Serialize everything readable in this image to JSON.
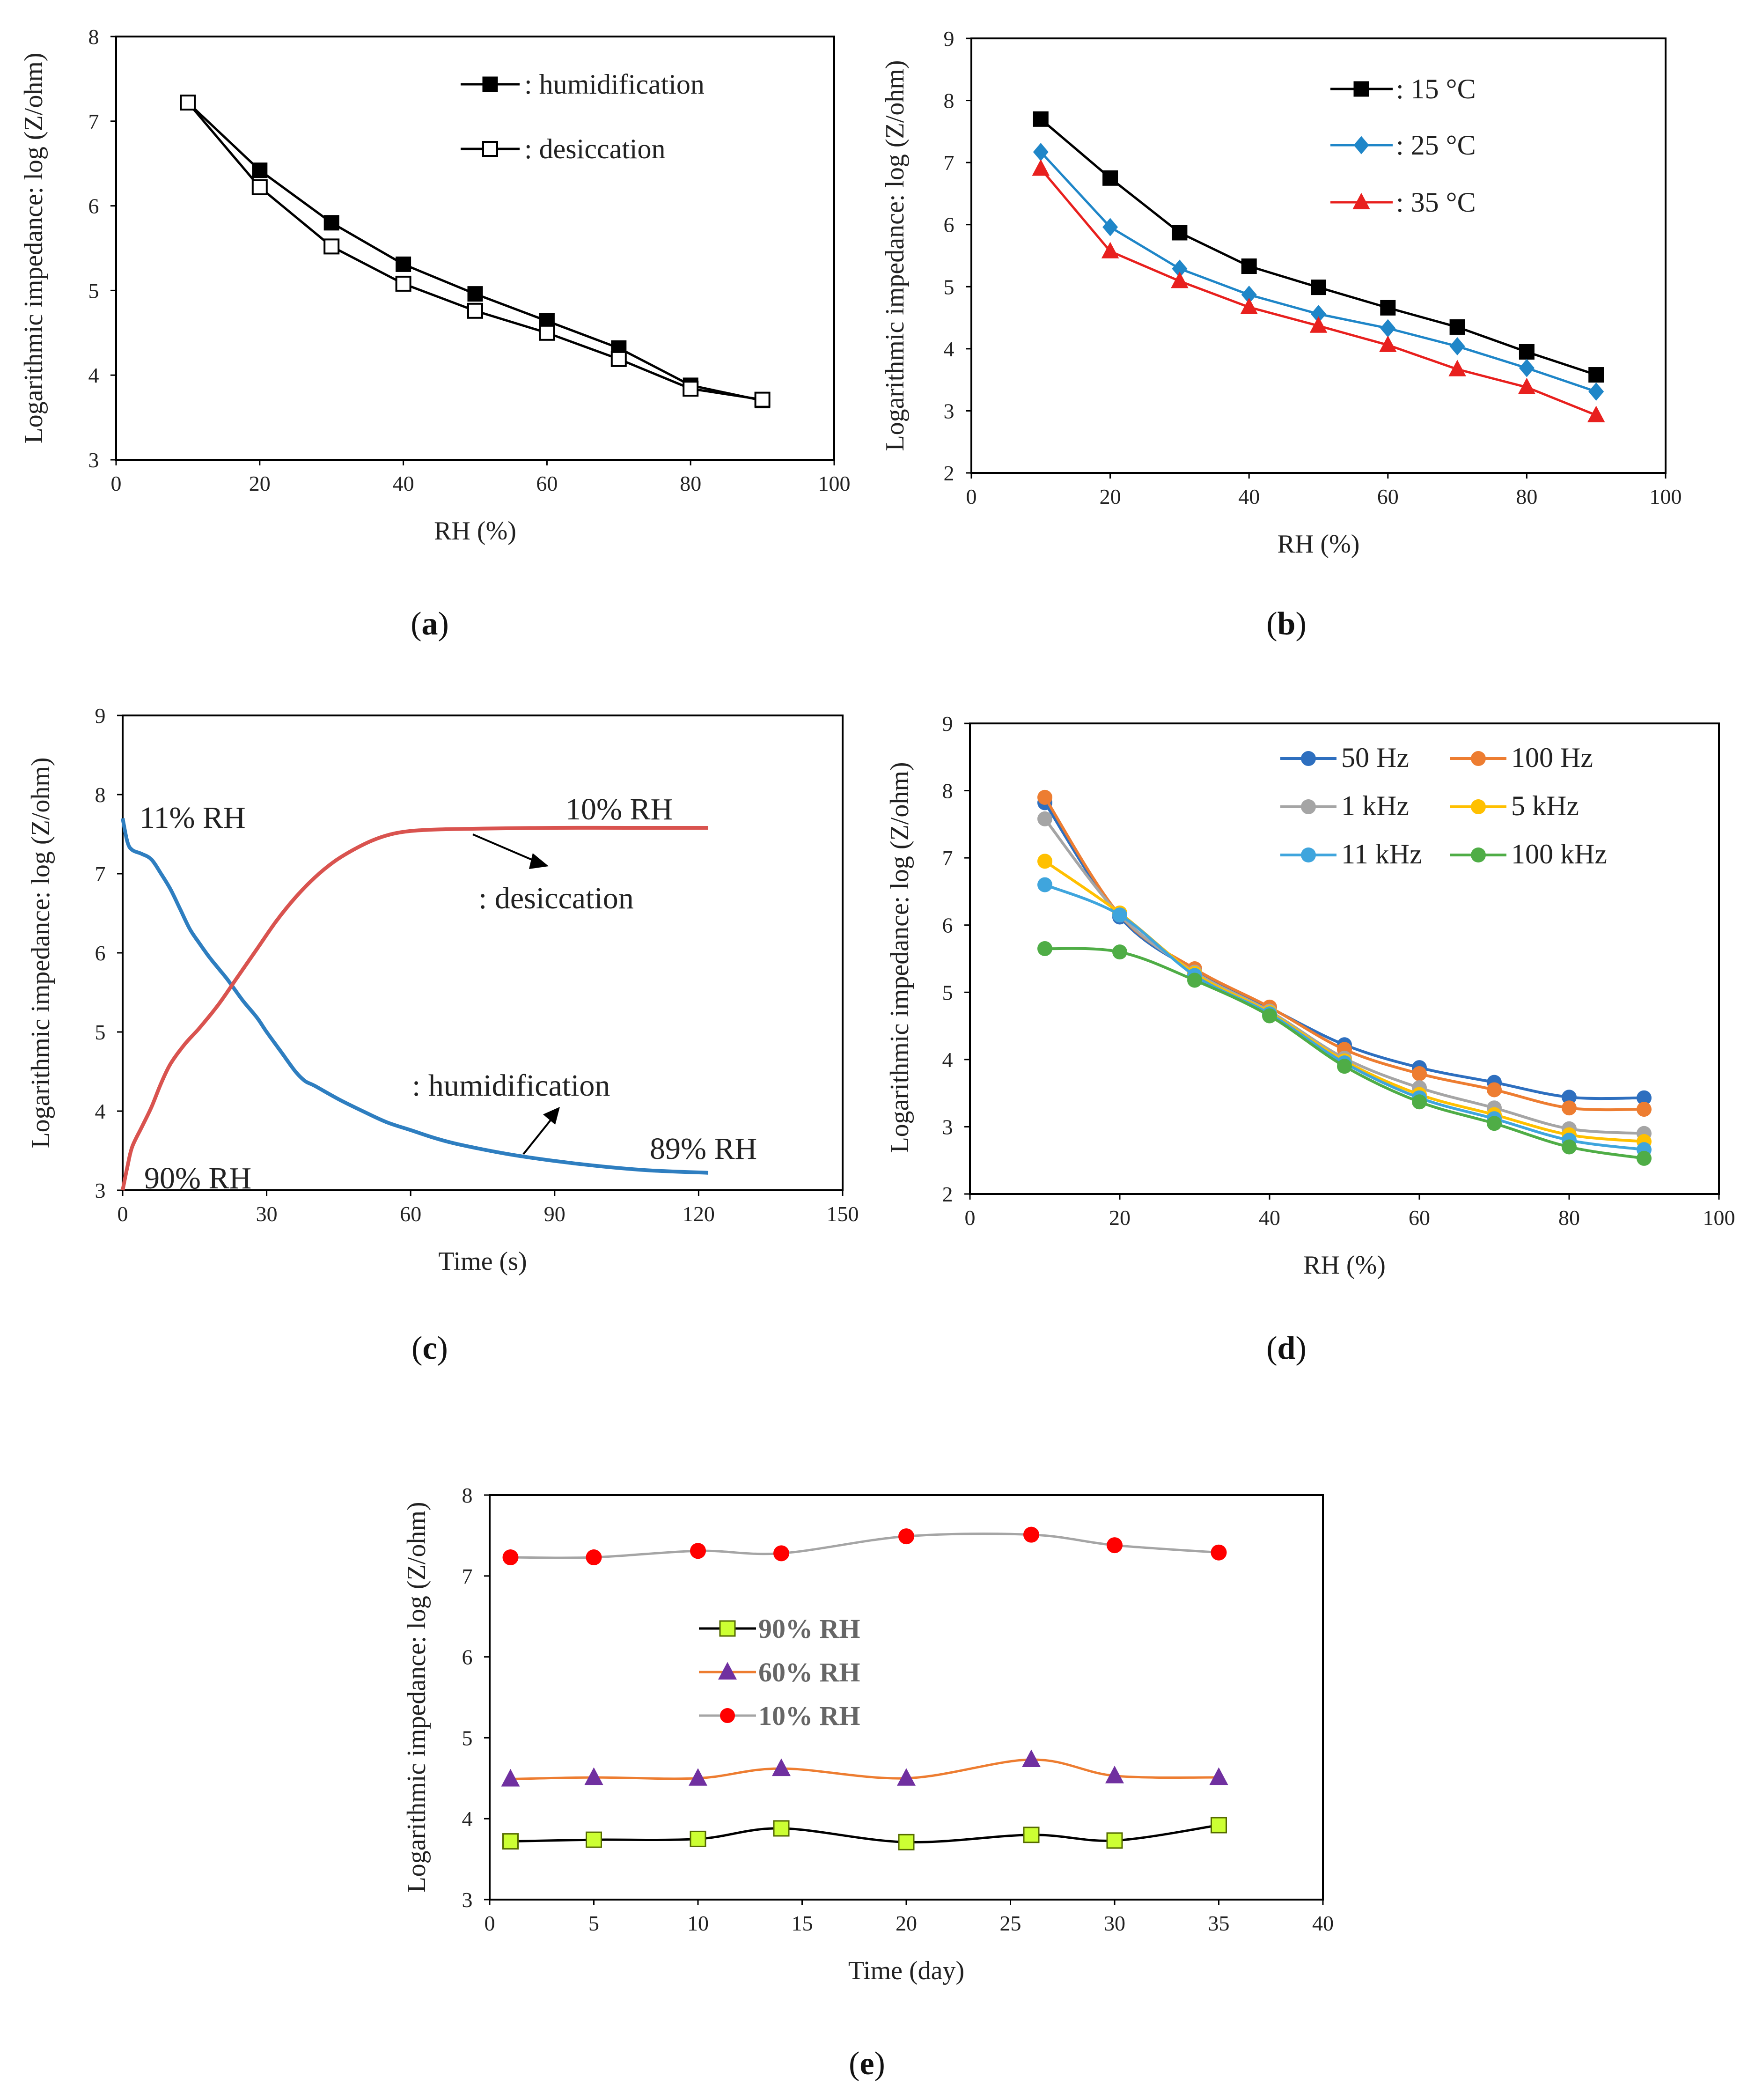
{
  "chart_data": [
    {
      "id": "a",
      "type": "line",
      "caption": "a",
      "xlabel": "RH (%)",
      "ylabel": "Logarithmic impedance: log (Z/ohm)",
      "xlim": [
        0,
        100
      ],
      "ylim": [
        3,
        8
      ],
      "xticks": [
        0,
        20,
        40,
        60,
        80,
        100
      ],
      "yticks": [
        3,
        4,
        5,
        6,
        7,
        8
      ],
      "grid": false,
      "legend": "top-right",
      "series": [
        {
          "name": ": humidification",
          "color": "#000000",
          "marker": "square-filled",
          "x": [
            10,
            20,
            30,
            40,
            50,
            60,
            70,
            80,
            90
          ],
          "y": [
            7.22,
            6.42,
            5.8,
            5.31,
            4.96,
            4.64,
            4.32,
            3.88,
            3.7
          ]
        },
        {
          "name": ": desiccation",
          "color": "#000000",
          "marker": "square-open",
          "x": [
            10,
            20,
            30,
            40,
            50,
            60,
            70,
            80,
            90
          ],
          "y": [
            7.22,
            6.22,
            5.52,
            5.08,
            4.76,
            4.5,
            4.19,
            3.84,
            3.71
          ]
        }
      ]
    },
    {
      "id": "b",
      "type": "line",
      "caption": "b",
      "xlabel": "RH (%)",
      "ylabel": "Logarithmic impedance: log (Z/ohm)",
      "xlim": [
        0,
        100
      ],
      "ylim": [
        2,
        9
      ],
      "xticks": [
        0,
        20,
        40,
        60,
        80,
        100
      ],
      "yticks": [
        2,
        3,
        4,
        5,
        6,
        7,
        8,
        9
      ],
      "grid": false,
      "legend": "top-right",
      "series": [
        {
          "name": ": 15 °C",
          "color": "#000000",
          "marker": "square-filled",
          "x": [
            10,
            20,
            30,
            40,
            50,
            60,
            70,
            80,
            90
          ],
          "y": [
            7.7,
            6.75,
            5.87,
            5.33,
            4.99,
            4.66,
            4.35,
            3.95,
            3.58
          ]
        },
        {
          "name": ": 25 °C",
          "color": "#1f86c8",
          "marker": "diamond",
          "x": [
            10,
            20,
            30,
            40,
            50,
            60,
            70,
            80,
            90
          ],
          "y": [
            7.17,
            5.96,
            5.29,
            4.87,
            4.56,
            4.33,
            4.04,
            3.69,
            3.31
          ]
        },
        {
          "name": ": 35 °C",
          "color": "#e8201e",
          "marker": "triangle",
          "x": [
            10,
            20,
            30,
            40,
            50,
            60,
            70,
            80,
            90
          ],
          "y": [
            6.9,
            5.57,
            5.09,
            4.67,
            4.37,
            4.06,
            3.67,
            3.38,
            2.93
          ]
        }
      ]
    },
    {
      "id": "c",
      "type": "line",
      "caption": "c",
      "xlabel": "Time (s)",
      "ylabel": "Logarithmic impedance: log (Z/ohm)",
      "xlim": [
        0,
        150
      ],
      "ylim": [
        3,
        9
      ],
      "xticks": [
        0,
        30,
        60,
        90,
        120,
        150
      ],
      "yticks": [
        3,
        4,
        5,
        6,
        7,
        8,
        9
      ],
      "grid": false,
      "series": [
        {
          "name": "humidification",
          "color": "#2e7ec0",
          "x": [
            0,
            1,
            2,
            4,
            6,
            8,
            10,
            12,
            14,
            16,
            18,
            20,
            22,
            25,
            28,
            30,
            33,
            36,
            38,
            40,
            45,
            50,
            55,
            60,
            65,
            70,
            80,
            90,
            100,
            110,
            122
          ],
          "y": [
            7.7,
            7.4,
            7.3,
            7.25,
            7.18,
            7.0,
            6.8,
            6.55,
            6.3,
            6.12,
            5.95,
            5.8,
            5.65,
            5.4,
            5.18,
            5.0,
            4.75,
            4.5,
            4.38,
            4.32,
            4.15,
            4.0,
            3.86,
            3.76,
            3.66,
            3.58,
            3.46,
            3.37,
            3.3,
            3.25,
            3.22
          ]
        },
        {
          "name": "desiccation",
          "color": "#d9534f",
          "x": [
            0,
            1,
            2,
            4,
            6,
            8,
            10,
            13,
            16,
            20,
            24,
            28,
            32,
            36,
            40,
            44,
            48,
            52,
            56,
            60,
            66,
            75,
            90,
            105,
            122
          ],
          "y": [
            3.0,
            3.3,
            3.55,
            3.8,
            4.05,
            4.35,
            4.6,
            4.85,
            5.05,
            5.35,
            5.7,
            6.05,
            6.4,
            6.7,
            6.95,
            7.15,
            7.3,
            7.42,
            7.5,
            7.54,
            7.56,
            7.57,
            7.58,
            7.58,
            7.58
          ]
        }
      ],
      "annotations": [
        "11% RH",
        "10% RH",
        ": desiccation",
        ": humidification",
        "89% RH",
        "90% RH"
      ]
    },
    {
      "id": "d",
      "type": "line",
      "caption": "d",
      "xlabel": "RH (%)",
      "ylabel": "Logarithmic impedance: log (Z/ohm)",
      "xlim": [
        0,
        100
      ],
      "ylim": [
        2,
        9
      ],
      "xticks": [
        0,
        20,
        40,
        60,
        80,
        100
      ],
      "yticks": [
        2,
        3,
        4,
        5,
        6,
        7,
        8,
        9
      ],
      "grid": false,
      "legend": "top-right",
      "series": [
        {
          "name": "50 Hz",
          "color": "#2e6fbf",
          "x": [
            10,
            20,
            30,
            40,
            50,
            60,
            70,
            80,
            90
          ],
          "y": [
            7.82,
            6.12,
            5.32,
            4.77,
            4.22,
            3.88,
            3.66,
            3.44,
            3.43
          ]
        },
        {
          "name": "100 Hz",
          "color": "#ed7d31",
          "x": [
            10,
            20,
            30,
            40,
            50,
            60,
            70,
            80,
            90
          ],
          "y": [
            7.9,
            6.15,
            5.35,
            4.78,
            4.15,
            3.79,
            3.55,
            3.28,
            3.26
          ]
        },
        {
          "name": "1 kHz",
          "color": "#a5a5a5",
          "x": [
            10,
            20,
            30,
            40,
            50,
            60,
            70,
            80,
            90
          ],
          "y": [
            7.58,
            6.15,
            5.3,
            4.72,
            4.02,
            3.58,
            3.28,
            2.97,
            2.9
          ]
        },
        {
          "name": "5 kHz",
          "color": "#ffc000",
          "x": [
            10,
            20,
            30,
            40,
            50,
            60,
            70,
            80,
            90
          ],
          "y": [
            6.95,
            6.18,
            5.28,
            4.7,
            3.98,
            3.48,
            3.18,
            2.88,
            2.78
          ]
        },
        {
          "name": "11 kHz",
          "color": "#3fa5dd",
          "x": [
            10,
            20,
            30,
            40,
            50,
            60,
            70,
            80,
            90
          ],
          "y": [
            6.6,
            6.15,
            5.25,
            4.68,
            3.95,
            3.43,
            3.12,
            2.8,
            2.66
          ]
        },
        {
          "name": "100 kHz",
          "color": "#4fad46",
          "x": [
            10,
            20,
            30,
            40,
            50,
            60,
            70,
            80,
            90
          ],
          "y": [
            5.65,
            5.6,
            5.18,
            4.65,
            3.9,
            3.37,
            3.05,
            2.7,
            2.53
          ]
        }
      ]
    },
    {
      "id": "e",
      "type": "line",
      "caption": "e",
      "xlabel": "Time (day)",
      "ylabel": "Logarithmic impedance: log (Z/ohm)",
      "xlim": [
        0,
        40
      ],
      "ylim": [
        3,
        8
      ],
      "xticks": [
        0,
        5,
        10,
        15,
        20,
        25,
        30,
        35,
        40
      ],
      "yticks": [
        3,
        4,
        5,
        6,
        7,
        8
      ],
      "grid": false,
      "legend": "center",
      "series": [
        {
          "name": "90% RH",
          "color": "#000000",
          "marker": "square",
          "marker_color": "#ccff33",
          "x": [
            1,
            5,
            10,
            14,
            20,
            26,
            30,
            35
          ],
          "y": [
            3.72,
            3.74,
            3.75,
            3.88,
            3.71,
            3.8,
            3.73,
            3.92
          ]
        },
        {
          "name": "60% RH",
          "color": "#ed7d31",
          "marker": "triangle",
          "marker_color": "#7030a0",
          "x": [
            1,
            5,
            10,
            14,
            20,
            26,
            30,
            35
          ],
          "y": [
            4.49,
            4.51,
            4.5,
            4.62,
            4.5,
            4.73,
            4.53,
            4.51
          ]
        },
        {
          "name": "10% RH",
          "color": "#a5a5a5",
          "marker": "circle",
          "marker_color": "#ff0000",
          "x": [
            1,
            5,
            10,
            14,
            20,
            26,
            30,
            35
          ],
          "y": [
            7.23,
            7.23,
            7.31,
            7.28,
            7.49,
            7.51,
            7.38,
            7.29
          ]
        }
      ]
    }
  ]
}
